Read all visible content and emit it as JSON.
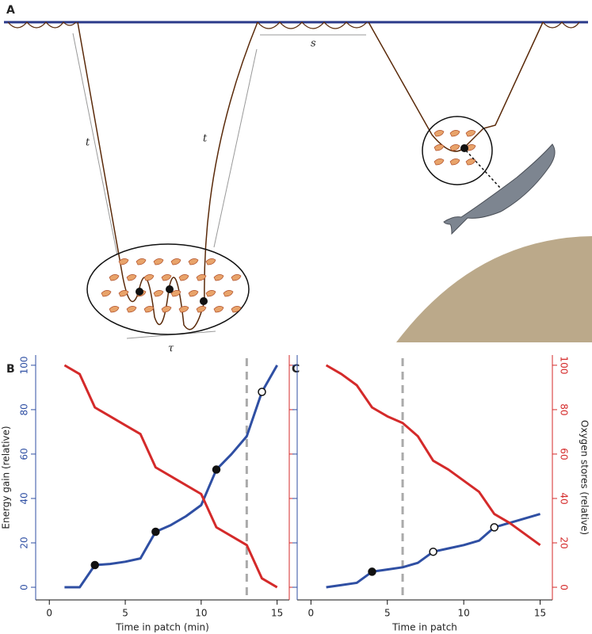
{
  "illustration": {
    "label": "A",
    "spacing": "s",
    "transit_left": "t",
    "transit_right": "t",
    "bottom_time": "τ"
  },
  "chart_data": [
    {
      "type": "line",
      "label": "B",
      "xlabel": "Time in patch (min)",
      "ylabel": "Energy gain (relative)",
      "x": [
        1,
        2,
        3,
        4,
        5,
        6,
        7,
        8,
        9,
        10,
        11,
        12,
        13,
        14,
        15
      ],
      "series": [
        {
          "color": "#2f4fa3",
          "values": [
            0,
            0,
            10,
            10.5,
            11.5,
            13,
            25,
            28,
            32,
            37,
            53,
            60,
            68,
            88,
            100
          ]
        },
        {
          "color": "#d42a2a",
          "axis": "y2",
          "values": [
            100,
            96,
            81,
            77,
            73,
            69,
            54,
            50,
            46,
            42,
            27,
            23,
            19,
            4,
            0
          ]
        }
      ],
      "filled_markers": [
        3,
        7,
        11
      ],
      "open_markers": [
        14
      ],
      "vline": 13,
      "xlim": [
        -0.9,
        15.8
      ],
      "xticks": [
        0,
        5,
        10,
        15
      ],
      "ylim": [
        -5.7,
        104.6
      ],
      "yticks": [
        0,
        20,
        40,
        60,
        80,
        100
      ],
      "y2lim": [
        -5.7,
        104.6
      ],
      "y2ticks": [
        0,
        20,
        40,
        60,
        80,
        100
      ],
      "labeled_axis": "y"
    },
    {
      "type": "line",
      "label": "C",
      "xlabel": "Time in patch",
      "y2label": "Oxygen stores (relative)",
      "x": [
        1,
        2,
        3,
        4,
        5,
        6,
        7,
        8,
        9,
        10,
        11,
        12,
        13,
        14,
        15
      ],
      "series": [
        {
          "color": "#2f4fa3",
          "values": [
            0,
            1,
            2,
            7,
            8,
            9,
            11,
            16,
            17.5,
            19,
            21,
            27,
            29,
            31,
            33
          ]
        },
        {
          "color": "#d42a2a",
          "axis": "y2",
          "values": [
            100,
            96,
            91,
            81,
            77,
            74,
            68,
            57,
            53,
            48,
            43,
            33,
            29,
            24,
            19
          ]
        }
      ],
      "filled_markers": [
        4
      ],
      "open_markers": [
        8,
        12
      ],
      "vline": 6,
      "xlim": [
        -0.9,
        15.8
      ],
      "xticks": [
        0,
        5,
        10,
        15
      ],
      "ylim": [
        -5.7,
        104.6
      ],
      "yticks": [
        0,
        20,
        40,
        60,
        80,
        100
      ],
      "y2lim": [
        -5.7,
        104.6
      ],
      "y2ticks": [
        0,
        20,
        40,
        60,
        80,
        100
      ],
      "labeled_axis": "y2"
    }
  ]
}
